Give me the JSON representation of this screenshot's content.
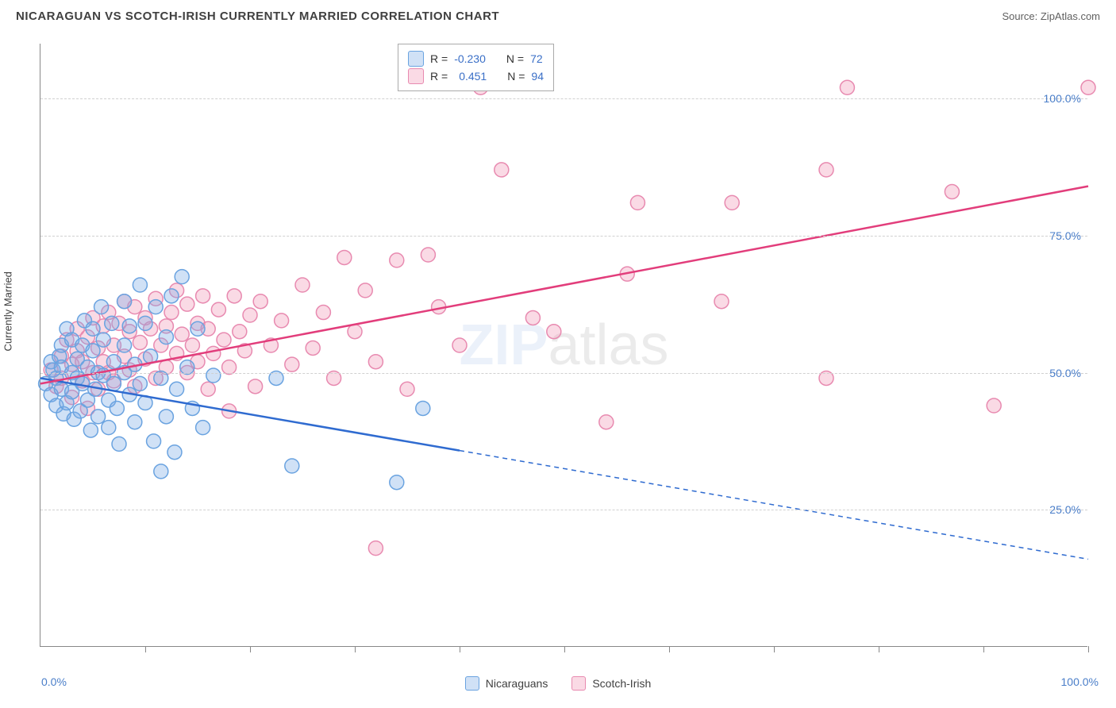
{
  "header": {
    "title": "NICARAGUAN VS SCOTCH-IRISH CURRENTLY MARRIED CORRELATION CHART",
    "source_label": "Source: ZipAtlas.com"
  },
  "watermark": {
    "part1": "ZIP",
    "part2": "atlas"
  },
  "chart": {
    "type": "scatter",
    "ylabel": "Currently Married",
    "xlim": [
      0,
      100
    ],
    "ylim": [
      0,
      110
    ],
    "y_ticks": [
      25,
      50,
      75,
      100
    ],
    "y_tick_labels": [
      "25.0%",
      "50.0%",
      "75.0%",
      "100.0%"
    ],
    "x_tick_positions": [
      10,
      20,
      30,
      40,
      50,
      60,
      70,
      80,
      90,
      100
    ],
    "x_min_label": "0.0%",
    "x_max_label": "100.0%",
    "background_color": "#ffffff",
    "grid_color": "#d0d0d0",
    "axis_color": "#888888",
    "tick_label_color": "#4a7ec9",
    "marker_radius": 9,
    "marker_border_width": 1.5,
    "series": [
      {
        "name": "Nicaraguans",
        "legend_label": "Nicaraguans",
        "R_label": "R =",
        "R_value": "-0.230",
        "N_label": "N =",
        "N_value": "72",
        "fill": "rgba(120,170,230,0.35)",
        "stroke": "#6aa3e0",
        "line_color": "#2f6bd0",
        "line_width": 2.5,
        "regression": {
          "x1": 0,
          "y1": 49,
          "x2": 100,
          "y2": 16,
          "solid_until_x": 40
        },
        "points": [
          [
            0.5,
            48
          ],
          [
            1,
            52
          ],
          [
            1,
            46
          ],
          [
            1.2,
            50.5
          ],
          [
            1.5,
            44
          ],
          [
            1.5,
            49
          ],
          [
            1.8,
            53
          ],
          [
            2,
            55
          ],
          [
            2,
            47
          ],
          [
            2,
            51
          ],
          [
            2.2,
            42.5
          ],
          [
            2.5,
            58
          ],
          [
            2.5,
            44.5
          ],
          [
            3,
            50
          ],
          [
            3,
            46.5
          ],
          [
            3,
            56
          ],
          [
            3.2,
            41.5
          ],
          [
            3.5,
            49
          ],
          [
            3.5,
            52.5
          ],
          [
            3.8,
            43
          ],
          [
            4,
            55
          ],
          [
            4,
            48
          ],
          [
            4.2,
            59.5
          ],
          [
            4.5,
            51
          ],
          [
            4.5,
            45
          ],
          [
            4.8,
            39.5
          ],
          [
            5,
            54
          ],
          [
            5,
            58
          ],
          [
            5.2,
            47
          ],
          [
            5.5,
            42
          ],
          [
            5.5,
            50
          ],
          [
            5.8,
            62
          ],
          [
            6,
            56
          ],
          [
            6,
            49.5
          ],
          [
            6.5,
            45
          ],
          [
            6.5,
            40
          ],
          [
            6.8,
            59
          ],
          [
            7,
            52
          ],
          [
            7,
            48
          ],
          [
            7.3,
            43.5
          ],
          [
            7.5,
            37
          ],
          [
            8,
            55
          ],
          [
            8,
            50
          ],
          [
            8,
            63
          ],
          [
            8.5,
            46
          ],
          [
            8.5,
            58.5
          ],
          [
            9,
            41
          ],
          [
            9,
            51.5
          ],
          [
            9.5,
            66
          ],
          [
            9.5,
            48
          ],
          [
            10,
            59
          ],
          [
            10,
            44.5
          ],
          [
            10.5,
            53
          ],
          [
            10.8,
            37.5
          ],
          [
            11,
            62
          ],
          [
            11.5,
            49
          ],
          [
            12,
            56.5
          ],
          [
            12,
            42
          ],
          [
            12.5,
            64
          ],
          [
            13,
            47
          ],
          [
            13.5,
            67.5
          ],
          [
            14,
            51
          ],
          [
            14.5,
            43.5
          ],
          [
            15,
            58
          ],
          [
            11.5,
            32
          ],
          [
            12.8,
            35.5
          ],
          [
            15.5,
            40
          ],
          [
            16.5,
            49.5
          ],
          [
            24,
            33
          ],
          [
            22.5,
            49
          ],
          [
            34,
            30
          ],
          [
            36.5,
            43.5
          ]
        ]
      },
      {
        "name": "Scotch-Irish",
        "legend_label": "Scotch-Irish",
        "R_label": "R =",
        "R_value": "0.451",
        "N_label": "N =",
        "N_value": "94",
        "fill": "rgba(240,150,180,0.35)",
        "stroke": "#e88ab0",
        "line_color": "#e23d7b",
        "line_width": 2.5,
        "regression": {
          "x1": 0,
          "y1": 48,
          "x2": 100,
          "y2": 84,
          "solid_until_x": 100
        },
        "points": [
          [
            1,
            50.5
          ],
          [
            1.5,
            47.5
          ],
          [
            2,
            53
          ],
          [
            2,
            49
          ],
          [
            2.5,
            56
          ],
          [
            3,
            51.5
          ],
          [
            3,
            45.5
          ],
          [
            3.5,
            54
          ],
          [
            3.5,
            58
          ],
          [
            4,
            48.5
          ],
          [
            4,
            52
          ],
          [
            4.5,
            56.5
          ],
          [
            4.5,
            43.5
          ],
          [
            5,
            50
          ],
          [
            5,
            60
          ],
          [
            5.5,
            54.5
          ],
          [
            5.5,
            47
          ],
          [
            6,
            58.5
          ],
          [
            6,
            52
          ],
          [
            6.5,
            50
          ],
          [
            6.5,
            61
          ],
          [
            7,
            55
          ],
          [
            7,
            48.5
          ],
          [
            7.5,
            59
          ],
          [
            8,
            53
          ],
          [
            8,
            63
          ],
          [
            8.5,
            50.5
          ],
          [
            8.5,
            57.5
          ],
          [
            9,
            62
          ],
          [
            9,
            47.5
          ],
          [
            9.5,
            55.5
          ],
          [
            10,
            60
          ],
          [
            10,
            52.5
          ],
          [
            10.5,
            58
          ],
          [
            11,
            49
          ],
          [
            11,
            63.5
          ],
          [
            11.5,
            55
          ],
          [
            12,
            58.5
          ],
          [
            12,
            51
          ],
          [
            12.5,
            61
          ],
          [
            13,
            53.5
          ],
          [
            13,
            65
          ],
          [
            13.5,
            57
          ],
          [
            14,
            50
          ],
          [
            14,
            62.5
          ],
          [
            14.5,
            55
          ],
          [
            15,
            59
          ],
          [
            15,
            52
          ],
          [
            15.5,
            64
          ],
          [
            16,
            47
          ],
          [
            16,
            58
          ],
          [
            16.5,
            53.5
          ],
          [
            17,
            61.5
          ],
          [
            17.5,
            56
          ],
          [
            18,
            51
          ],
          [
            18,
            43
          ],
          [
            18.5,
            64
          ],
          [
            19,
            57.5
          ],
          [
            19.5,
            54
          ],
          [
            20,
            60.5
          ],
          [
            20.5,
            47.5
          ],
          [
            21,
            63
          ],
          [
            22,
            55
          ],
          [
            23,
            59.5
          ],
          [
            24,
            51.5
          ],
          [
            25,
            66
          ],
          [
            26,
            54.5
          ],
          [
            27,
            61
          ],
          [
            28,
            49
          ],
          [
            29,
            71
          ],
          [
            30,
            57.5
          ],
          [
            31,
            65
          ],
          [
            32,
            52
          ],
          [
            34,
            70.5
          ],
          [
            35,
            47
          ],
          [
            37,
            71.5
          ],
          [
            38,
            62
          ],
          [
            40,
            55
          ],
          [
            32,
            18
          ],
          [
            42,
            102
          ],
          [
            44,
            87
          ],
          [
            47,
            60
          ],
          [
            49,
            57.5
          ],
          [
            54,
            41
          ],
          [
            56,
            68
          ],
          [
            57,
            81
          ],
          [
            65,
            63
          ],
          [
            66,
            81
          ],
          [
            75,
            49
          ],
          [
            75,
            87
          ],
          [
            77,
            102
          ],
          [
            87,
            83
          ],
          [
            91,
            44
          ],
          [
            100,
            102
          ]
        ]
      }
    ]
  }
}
